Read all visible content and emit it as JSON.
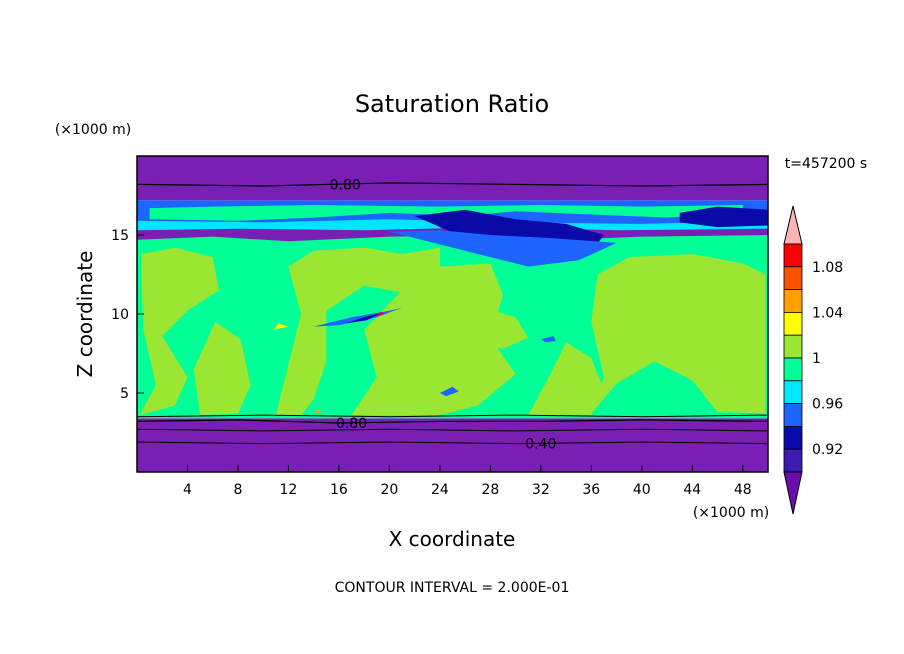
{
  "chart_data": {
    "type": "heatmap",
    "title": "Saturation Ratio",
    "xlabel": "X coordinate",
    "ylabel": "Z coordinate",
    "x_unit": "(×1000 m)",
    "y_unit": "(×1000 m)",
    "time_label": "t=457200 s",
    "footer": "CONTOUR INTERVAL = 2.000E-01",
    "xlim": [
      0,
      50
    ],
    "ylim": [
      0,
      20
    ],
    "x_ticks": [
      4,
      8,
      12,
      16,
      20,
      24,
      28,
      32,
      36,
      40,
      44,
      48
    ],
    "y_ticks": [
      5,
      10,
      15
    ],
    "contour_labels": [
      {
        "text": "0.80",
        "x": 16.5,
        "z": 18.2
      },
      {
        "text": "0.80",
        "x": 17.0,
        "z": 3.1
      },
      {
        "text": "0.40",
        "x": 32.0,
        "z": 1.8
      }
    ],
    "colorbar": {
      "tick_labels": [
        "0.92",
        "0.96",
        "1",
        "1.04",
        "1.08"
      ],
      "colors": [
        "#6a0dad",
        "#3c1bb0",
        "#0a0aa8",
        "#1e64ff",
        "#00e6ff",
        "#00ff96",
        "#9be632",
        "#ffff00",
        "#ffa000",
        "#ff5000",
        "#ff0000",
        "#ffb4b4"
      ]
    },
    "colors": {
      "below": "#7a1fb4",
      "supersat": "#9be632",
      "near": "#00ff96",
      "dark": "#0a0aa8",
      "blue": "#1e64ff",
      "cyan": "#00e6ff",
      "yellow": "#ffff00",
      "orange": "#ffa000",
      "red": "#ff0000"
    }
  }
}
